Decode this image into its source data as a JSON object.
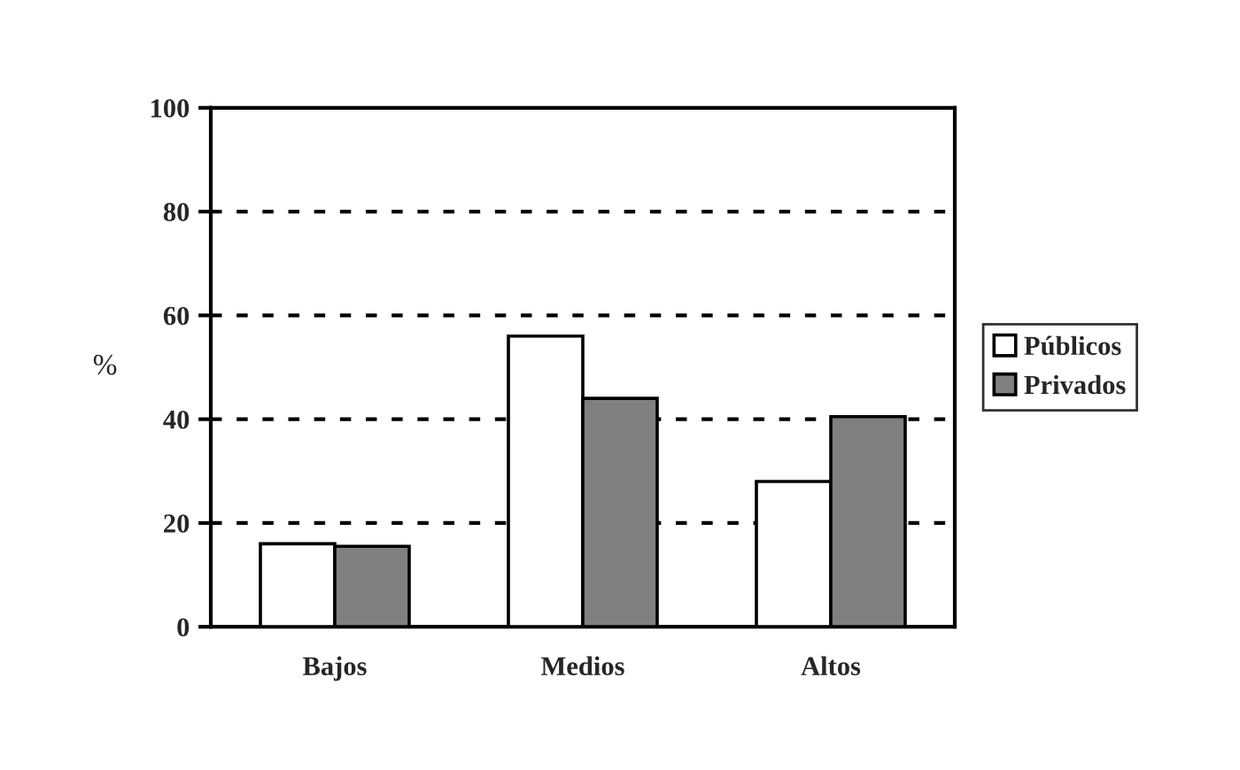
{
  "chart_data": {
    "type": "bar",
    "ylabel": "%",
    "categories": [
      "Bajos",
      "Medios",
      "Altos"
    ],
    "series": [
      {
        "name": "Públicos",
        "color": "#ffffff",
        "values": [
          16,
          56,
          28
        ]
      },
      {
        "name": "Privados",
        "color": "#808080",
        "values": [
          15.5,
          44,
          40.5
        ]
      }
    ],
    "ylim": [
      0,
      100
    ],
    "yticks": [
      0,
      20,
      40,
      60,
      80,
      100
    ],
    "grid": "y",
    "legend": "right"
  }
}
